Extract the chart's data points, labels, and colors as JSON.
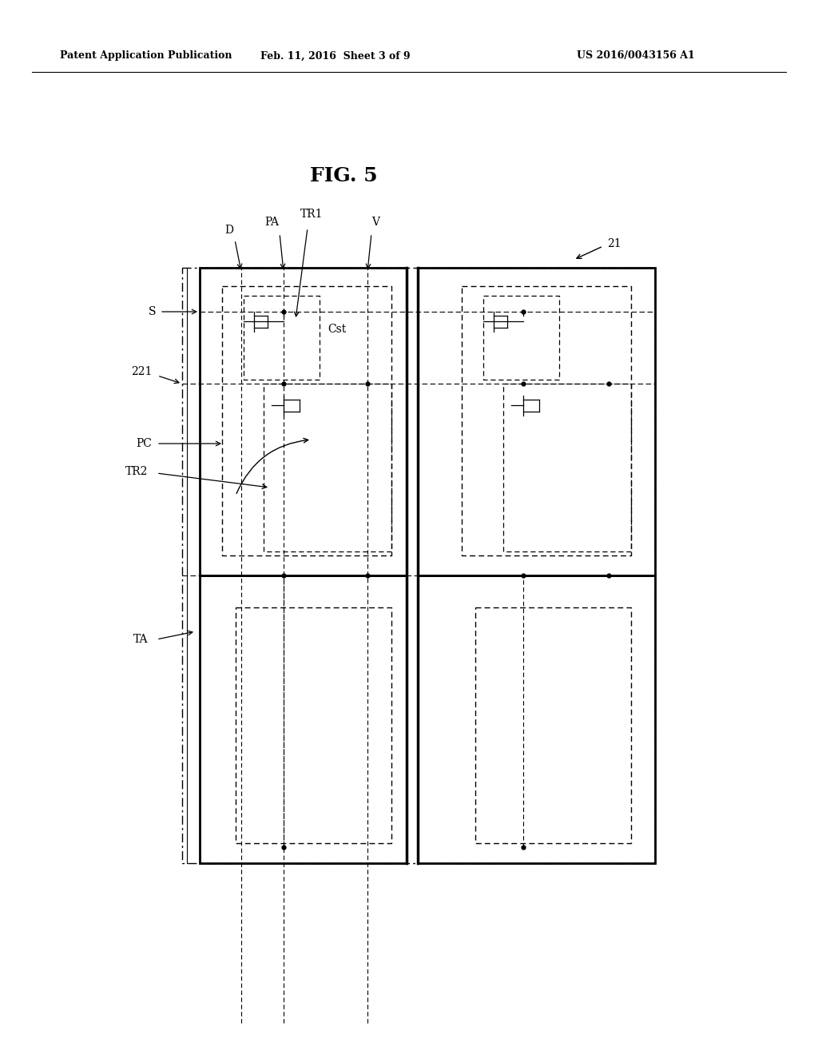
{
  "title": "FIG. 5",
  "header_left": "Patent Application Publication",
  "header_center": "Feb. 11, 2016  Sheet 3 of 9",
  "header_right": "US 2016/0043156 A1",
  "bg_color": "#ffffff",
  "fig_label": "21",
  "label_fontsize": 10,
  "title_fontsize": 18,
  "header_fontsize": 9
}
